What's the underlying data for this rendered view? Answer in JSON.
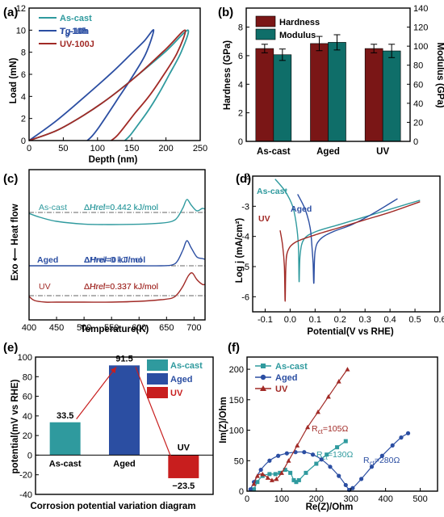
{
  "figure": {
    "panel_labels": [
      "(a)",
      "(b)",
      "(c)",
      "(d)",
      "(e)",
      "(f)"
    ]
  },
  "colors": {
    "cyan": "#2f9a9e",
    "blue": "#2b4ea2",
    "red": "#a12a26",
    "dark_red": "#7a1616",
    "teal": "#0f6e69",
    "bright_red": "#c81e1e",
    "dashdot": "#333333"
  },
  "chart_data": [
    {
      "panel": "(a)",
      "type": "line",
      "xlabel": "Depth (nm)",
      "ylabel": "Load (mN)",
      "xlim": [
        0,
        250
      ],
      "ylim": [
        0,
        12
      ],
      "xticks": [
        "0",
        "50",
        "100",
        "150",
        "200",
        "250"
      ],
      "yticks": [
        "0",
        "2",
        "4",
        "6",
        "8",
        "10",
        "12"
      ],
      "legend": [
        "As-cast",
        "Tg-10h",
        "UV-100J"
      ],
      "legend_position": "top-left",
      "series": [
        {
          "name": "As-cast",
          "color": "cyan",
          "x": [
            0,
            40,
            80,
            120,
            160,
            200,
            232,
            222,
            205,
            190,
            175,
            160,
            148,
            140
          ],
          "y": [
            0,
            0.9,
            2.3,
            4.0,
            6.0,
            8.1,
            10.0,
            8.0,
            6.0,
            4.3,
            2.8,
            1.5,
            0.5,
            0
          ]
        },
        {
          "name": "Tg-10h",
          "color": "blue",
          "x": [
            0,
            40,
            80,
            120,
            150,
            168,
            182,
            170,
            150,
            132,
            115,
            102,
            92,
            85
          ],
          "y": [
            0,
            1.8,
            3.9,
            6.1,
            7.9,
            9.0,
            10.0,
            7.8,
            5.7,
            4.0,
            2.4,
            1.2,
            0.4,
            0
          ]
        },
        {
          "name": "UV-100J",
          "color": "red",
          "x": [
            0,
            40,
            80,
            120,
            160,
            200,
            228,
            216,
            195,
            175,
            155,
            140,
            128,
            120
          ],
          "y": [
            0,
            0.9,
            2.3,
            4.0,
            6.0,
            8.3,
            10.0,
            7.9,
            5.8,
            4.0,
            2.5,
            1.3,
            0.4,
            0
          ]
        }
      ]
    },
    {
      "panel": "(b)",
      "type": "bar",
      "categories": [
        "As-cast",
        "Aged",
        "UV"
      ],
      "ylabel": "Hardness (GPa)",
      "y2label": "Modulus (GPa)",
      "ylim": [
        0,
        9.333
      ],
      "y2lim": [
        0,
        140
      ],
      "yticks": [
        "0",
        "2",
        "4",
        "6",
        "8"
      ],
      "y2ticks": [
        "0",
        "20",
        "40",
        "60",
        "80",
        "100",
        "120",
        "140"
      ],
      "legend_position": "top-left",
      "series": [
        {
          "name": "Hardness",
          "color": "dark_red",
          "axis": "left",
          "values": [
            6.5,
            6.85,
            6.5
          ],
          "errors": [
            0.3,
            0.5,
            0.3
          ]
        },
        {
          "name": "Modulus",
          "color": "teal",
          "axis": "right",
          "values": [
            91,
            104,
            95
          ],
          "errors": [
            6,
            8,
            7
          ]
        }
      ]
    },
    {
      "panel": "(c)",
      "type": "line",
      "xlabel": "Temperature(K)",
      "ylabel": "Exo ⟵ Heat flow",
      "xlim": [
        400,
        720
      ],
      "xticks": [
        "400",
        "450",
        "500",
        "550",
        "600",
        "650",
        "700"
      ],
      "series": [
        {
          "name": "As-cast",
          "color": "cyan",
          "x": [
            400,
            420,
            450,
            500,
            550,
            600,
            640,
            660,
            670,
            680,
            687,
            695,
            705,
            715,
            720
          ],
          "y": [
            0.06,
            0.3,
            0.55,
            0.72,
            0.75,
            0.73,
            0.66,
            0.55,
            0.3,
            -0.3,
            -0.8,
            -0.45,
            -0.1,
            -0.25,
            -0.2
          ]
        },
        {
          "name": "Aged",
          "color": "blue",
          "x": [
            400,
            450,
            500,
            550,
            600,
            640,
            660,
            670,
            680,
            687,
            695,
            705,
            715,
            720
          ],
          "y": [
            0,
            0,
            0,
            0,
            0,
            0,
            -0.05,
            -0.3,
            -1.0,
            -1.55,
            -1.1,
            -0.55,
            -0.45,
            -0.4
          ]
        },
        {
          "name": "UV",
          "color": "red",
          "x": [
            400,
            410,
            430,
            450,
            500,
            550,
            600,
            640,
            660,
            670,
            680,
            690,
            697,
            705,
            715,
            720
          ],
          "y": [
            0.05,
            0.3,
            0.4,
            0.4,
            0.4,
            0.4,
            0.35,
            0.25,
            0.15,
            -0.1,
            -0.6,
            -1.25,
            -1.4,
            -1.0,
            -0.7,
            -0.7
          ]
        }
      ],
      "labels": [
        {
          "series": "As-cast",
          "name": "As-cast",
          "text": "ΔHrel=0.442 kJ/mol"
        },
        {
          "series": "Aged",
          "name": "Aged",
          "text": "ΔHrel=0 kJ/mol"
        },
        {
          "series": "UV",
          "name": "UV",
          "text": "ΔHrel=0.337 kJ/mol"
        }
      ]
    },
    {
      "panel": "(d)",
      "type": "line",
      "xlabel": "Potential(V vs RHE)",
      "ylabel": "Log j (mA/cm²)",
      "xlim": [
        -0.15,
        0.6
      ],
      "ylim": [
        -6.5,
        -2
      ],
      "xticks": [
        "-0.1",
        "0.0",
        "0.1",
        "0.2",
        "0.3",
        "0.4",
        "0.5",
        "0.6"
      ],
      "yticks": [
        "-6",
        "-5",
        "-4",
        "-3",
        "-2"
      ],
      "series": [
        {
          "name": "As-cast",
          "color": "cyan",
          "x": [
            -0.06,
            -0.02,
            0.01,
            0.025,
            0.033,
            0.036,
            0.04,
            0.055,
            0.1,
            0.2,
            0.3,
            0.4,
            0.52
          ],
          "y": [
            -2.1,
            -2.5,
            -3.0,
            -3.6,
            -4.3,
            -5.5,
            -4.6,
            -4.1,
            -3.85,
            -3.6,
            -3.35,
            -3.1,
            -2.8
          ]
        },
        {
          "name": "Aged",
          "color": "blue",
          "x": [
            0.03,
            0.06,
            0.08,
            0.088,
            0.092,
            0.095,
            0.1,
            0.12,
            0.17,
            0.25,
            0.33,
            0.43
          ],
          "y": [
            -2.6,
            -3.1,
            -3.7,
            -4.4,
            -4.9,
            -5.55,
            -4.5,
            -4.1,
            -3.85,
            -3.6,
            -3.25,
            -2.75
          ]
        },
        {
          "name": "UV",
          "color": "red",
          "x": [
            -0.04,
            -0.03,
            -0.023,
            -0.02,
            -0.017,
            -0.01,
            0.02,
            0.1,
            0.2,
            0.3,
            0.4,
            0.52
          ],
          "y": [
            -3.8,
            -4.3,
            -5.0,
            -6.15,
            -5.0,
            -4.5,
            -4.2,
            -3.95,
            -3.7,
            -3.45,
            -3.2,
            -2.85
          ]
        }
      ]
    },
    {
      "panel": "(e)",
      "type": "bar",
      "title": "Corrosion potential variation diagram",
      "ylabel": "potential(mV vs RHE)",
      "ylim": [
        -40,
        100
      ],
      "yticks": [
        "-40",
        "-20",
        "0",
        "20",
        "40",
        "60",
        "80",
        "100"
      ],
      "categories": [
        "As-cast",
        "Aged",
        "UV"
      ],
      "values": [
        33.5,
        91.5,
        -23.5
      ],
      "value_labels": [
        "33.5",
        "91.5",
        "−23.5"
      ],
      "colors": [
        "cyan",
        "blue",
        "bright_red"
      ],
      "legend": [
        "As-cast",
        "Aged",
        "UV"
      ],
      "legend_position": "top-right"
    },
    {
      "panel": "(f)",
      "type": "scatter",
      "xlabel": "Re(Z)/Ohm",
      "ylabel": "Im(Z)/Ohm",
      "xlim": [
        0,
        550
      ],
      "ylim": [
        0,
        220
      ],
      "xticks": [
        "0",
        "100",
        "200",
        "300",
        "400",
        "500"
      ],
      "yticks": [
        "0",
        "50",
        "100",
        "150",
        "200"
      ],
      "legend": [
        "As-cast",
        "Aged",
        "UV"
      ],
      "legend_position": "top-left",
      "series": [
        {
          "name": "As-cast",
          "color": "cyan",
          "marker": "square",
          "x": [
            20,
            30,
            45,
            65,
            82,
            95,
            110,
            125,
            135,
            142,
            150,
            170,
            200,
            230,
            260,
            285
          ],
          "y": [
            3,
            15,
            25,
            28,
            28,
            30,
            35,
            30,
            18,
            15,
            18,
            30,
            45,
            60,
            72,
            82
          ]
        },
        {
          "name": "Aged",
          "color": "blue",
          "marker": "circle",
          "x": [
            10,
            20,
            40,
            65,
            90,
            115,
            140,
            165,
            190,
            215,
            240,
            265,
            285,
            295,
            305,
            330,
            360,
            390,
            420,
            445,
            465
          ],
          "y": [
            3,
            15,
            35,
            50,
            58,
            62,
            64,
            64,
            60,
            52,
            40,
            25,
            10,
            2,
            5,
            20,
            40,
            58,
            75,
            88,
            95
          ]
        },
        {
          "name": "UV",
          "color": "red",
          "marker": "triangle",
          "x": [
            20,
            30,
            45,
            60,
            72,
            85,
            100,
            120,
            145,
            175,
            205,
            235,
            265,
            290
          ],
          "y": [
            12,
            25,
            28,
            22,
            18,
            20,
            30,
            50,
            75,
            105,
            130,
            155,
            180,
            200
          ]
        }
      ],
      "annotations": [
        "R",
        "ct",
        "=105Ω",
        "=130Ω",
        "=280Ω"
      ]
    }
  ]
}
